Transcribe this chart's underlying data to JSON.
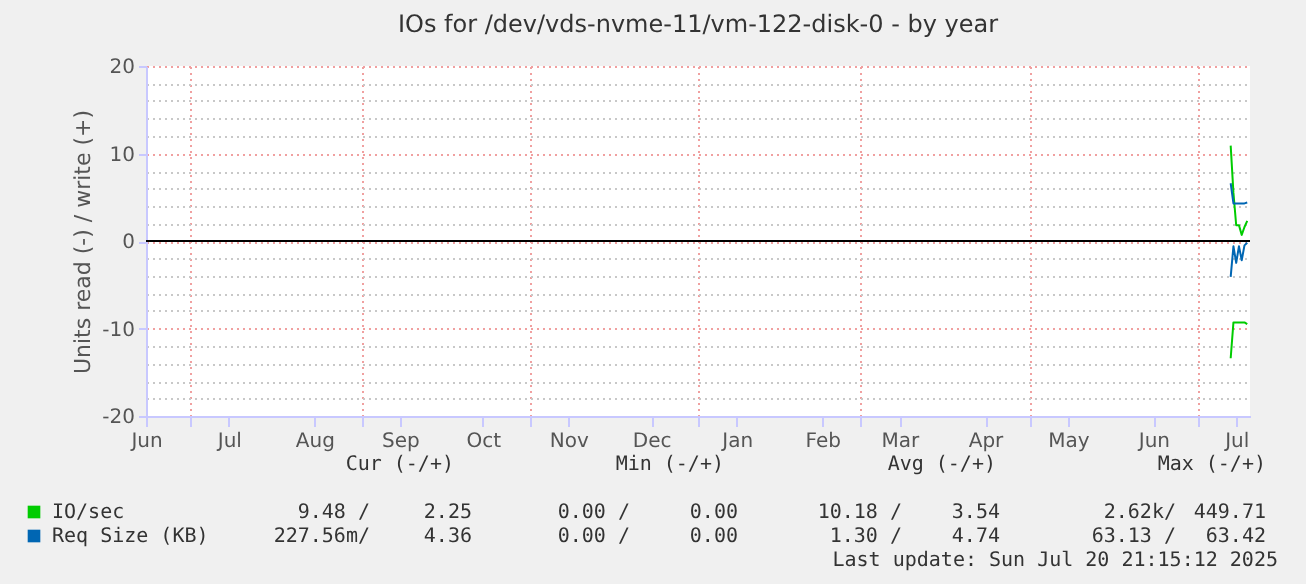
{
  "chart_data": {
    "type": "line",
    "title": "IOs for /dev/vds-nvme-11/vm-122-disk-0 - by year",
    "ylabel": "Units read (-) / write (+)",
    "xlim": [
      "2024-06-15",
      "2025-07-20"
    ],
    "xticks": [
      {
        "value": "2024-06-15",
        "label": "Jun"
      },
      {
        "value": "2024-07-15",
        "label": "Jul"
      },
      {
        "value": "2024-08-15",
        "label": "Aug"
      },
      {
        "value": "2024-09-15",
        "label": "Sep"
      },
      {
        "value": "2024-10-15",
        "label": "Oct"
      },
      {
        "value": "2024-11-15",
        "label": "Nov"
      },
      {
        "value": "2024-12-15",
        "label": "Dec"
      },
      {
        "value": "2025-01-15",
        "label": "Jan"
      },
      {
        "value": "2025-02-15",
        "label": "Feb"
      },
      {
        "value": "2025-03-15",
        "label": "Mar"
      },
      {
        "value": "2025-04-15",
        "label": "Apr"
      },
      {
        "value": "2025-05-15",
        "label": "May"
      },
      {
        "value": "2025-06-15",
        "label": "Jun"
      },
      {
        "value": "2025-07-15",
        "label": "Jul"
      },
      {
        "value": "2024-07-01",
        "label": null
      },
      {
        "value": "2024-09-01",
        "label": null
      },
      {
        "value": "2024-11-01",
        "label": null
      },
      {
        "value": "2025-01-01",
        "label": null
      },
      {
        "value": "2025-03-01",
        "label": null
      },
      {
        "value": "2025-05-01",
        "label": null
      },
      {
        "value": "2025-07-01",
        "label": null
      }
    ],
    "ylim": [
      -20,
      20
    ],
    "yticks": [
      -20,
      -10,
      0,
      10,
      20,
      {
        "value": -18,
        "label": null
      },
      {
        "value": -16,
        "label": null
      },
      {
        "value": -14,
        "label": null
      },
      {
        "value": -12,
        "label": null
      },
      {
        "value": -8,
        "label": null
      },
      {
        "value": -6,
        "label": null
      },
      {
        "value": -4,
        "label": null
      },
      {
        "value": -2,
        "label": null
      },
      {
        "value": 2,
        "label": null
      },
      {
        "value": 4,
        "label": null
      },
      {
        "value": 6,
        "label": null
      },
      {
        "value": 8,
        "label": null
      },
      {
        "value": 12,
        "label": null
      },
      {
        "value": 14,
        "label": null
      },
      {
        "value": 16,
        "label": null
      },
      {
        "value": 18,
        "label": null
      }
    ],
    "grid": true,
    "legend": "bottom",
    "line_style": "solid",
    "marker": "none",
    "ref_lines": [
      {
        "axis": "y",
        "value": 0,
        "color": "#000000"
      }
    ],
    "series": [
      {
        "color": "#00cc00",
        "x": [
          "2025-07-13",
          "2025-07-14",
          "2025-07-15",
          "2025-07-18",
          "2025-07-19"
        ],
        "values": [
          -13.4,
          -9.3,
          -9.3,
          -9.3,
          -9.5
        ]
      },
      {
        "name": "IO/sec",
        "color": "#00cc00",
        "x": [
          "2025-07-13",
          "2025-07-14",
          "2025-07-15",
          "2025-07-16",
          "2025-07-17",
          "2025-07-18",
          "2025-07-19"
        ],
        "values": [
          10.9,
          5.5,
          1.8,
          1.8,
          0.7,
          1.6,
          2.3
        ]
      },
      {
        "color": "#0066b3",
        "x": [
          "2025-07-13",
          "2025-07-14",
          "2025-07-15",
          "2025-07-16",
          "2025-07-17",
          "2025-07-18",
          "2025-07-19"
        ],
        "values": [
          -4.1,
          -0.6,
          -2.5,
          -0.6,
          -2.2,
          -0.5,
          -0.2
        ]
      },
      {
        "name": "Req Size (KB)",
        "color": "#0066b3",
        "x": [
          "2025-07-13",
          "2025-07-14",
          "2025-07-15",
          "2025-07-18",
          "2025-07-19"
        ],
        "values": [
          6.6,
          4.3,
          4.3,
          4.3,
          4.4
        ]
      }
    ],
    "annotations": [
      "Cur (-/+)",
      "Min (-/+)",
      "Avg (-/+)",
      "Max (-/+)",
      "9.48 /",
      "2.25",
      "0.00 /",
      "0.00",
      "10.18 /",
      "3.54",
      "2.62k/",
      "449.71",
      "227.56m/",
      "4.36",
      "0.00 /",
      "0.00",
      "1.30 /",
      "4.74",
      "63.13 /",
      "63.42",
      "Last update: Sun Jul 20 21:15:12 2025"
    ]
  }
}
